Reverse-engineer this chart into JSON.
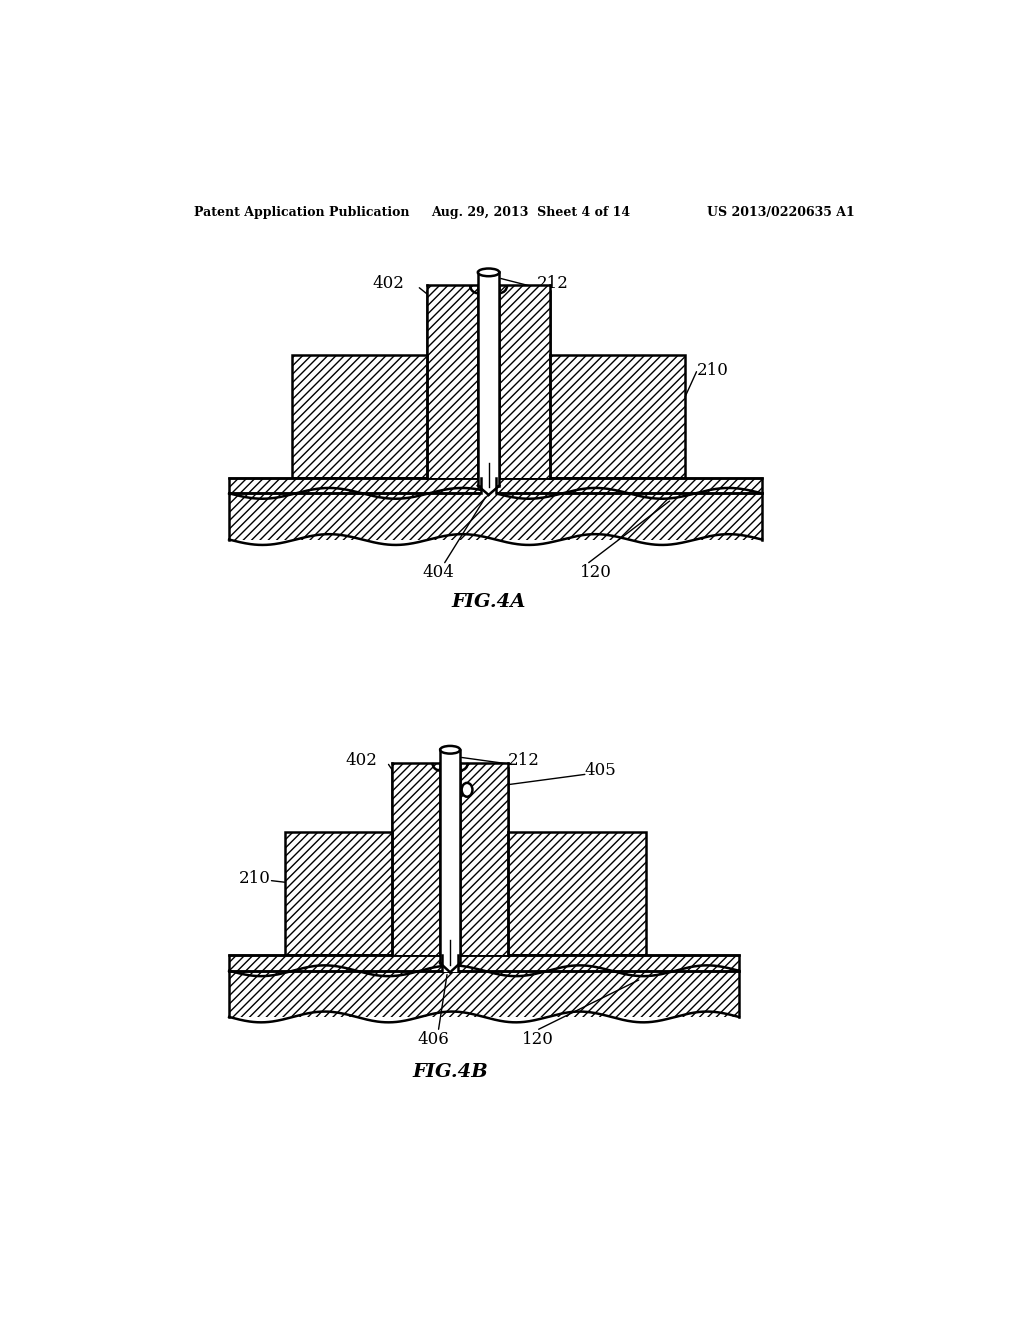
{
  "bg_color": "#ffffff",
  "header_left": "Patent Application Publication",
  "header_center": "Aug. 29, 2013  Sheet 4 of 14",
  "header_right": "US 2013/0220635 A1",
  "fig4a_caption": "FIG.4A",
  "fig4b_caption": "FIG.4B",
  "line_color": "#000000"
}
